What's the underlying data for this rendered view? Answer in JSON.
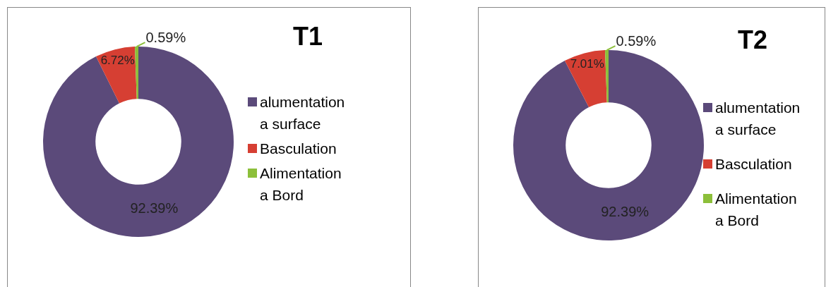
{
  "chart_data": [
    {
      "type": "donut",
      "title": "T1",
      "categories": [
        "alumentation a surface",
        "Basculation",
        "Alimentation a Bord"
      ],
      "values": [
        92.39,
        6.72,
        0.59
      ],
      "colors": [
        "#5b4a7a",
        "#d63f33",
        "#8cbf3a"
      ],
      "value_labels": [
        "92.39%",
        "6.72%",
        "0.59%"
      ],
      "legend": "right"
    },
    {
      "type": "donut",
      "title": "T2",
      "categories": [
        "alumentation a surface",
        "Basculation",
        "Alimentation a Bord"
      ],
      "values": [
        92.39,
        7.01,
        0.59
      ],
      "colors": [
        "#5b4a7a",
        "#d63f33",
        "#8cbf3a"
      ],
      "value_labels": [
        "92.39%",
        "7.01%",
        "0.59%"
      ],
      "legend": "right"
    }
  ]
}
